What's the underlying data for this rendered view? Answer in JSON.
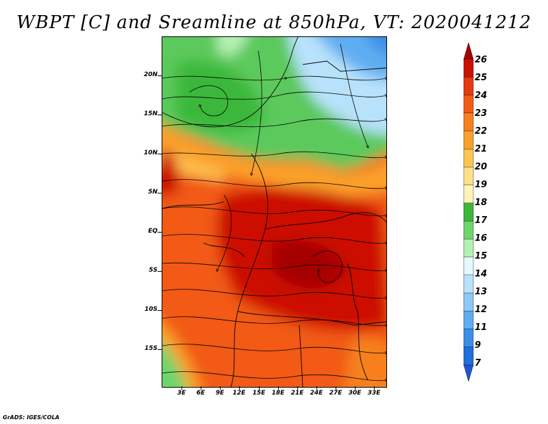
{
  "title": "WBPT [C] and Sreamline at 850hPa, VT: 2020041212",
  "credit": "GrADS: IGES/COLA",
  "lat_labels": [
    "20N",
    "15N",
    "10N",
    "5N",
    "EQ",
    "5S",
    "10S",
    "15S"
  ],
  "lon_labels": [
    "3E",
    "6E",
    "9E",
    "12E",
    "15E",
    "18E",
    "21E",
    "24E",
    "27E",
    "30E",
    "33E"
  ],
  "colorbar": {
    "labels": [
      "26",
      "25",
      "24",
      "23",
      "22",
      "21",
      "20",
      "19",
      "18",
      "17",
      "16",
      "15",
      "14",
      "13",
      "12",
      "11",
      "9",
      "7"
    ],
    "colors": [
      "#a50000",
      "#cc1100",
      "#e8380e",
      "#f25a14",
      "#f7801c",
      "#fba02c",
      "#fdc452",
      "#fde08a",
      "#fff3b8",
      "#3ab83a",
      "#6cd66c",
      "#b3f0b3",
      "#e4f8ff",
      "#b8e2fb",
      "#8dc9f7",
      "#5fadf1",
      "#3a8ee8",
      "#1f6fdc",
      "#1f55d0"
    ]
  }
}
